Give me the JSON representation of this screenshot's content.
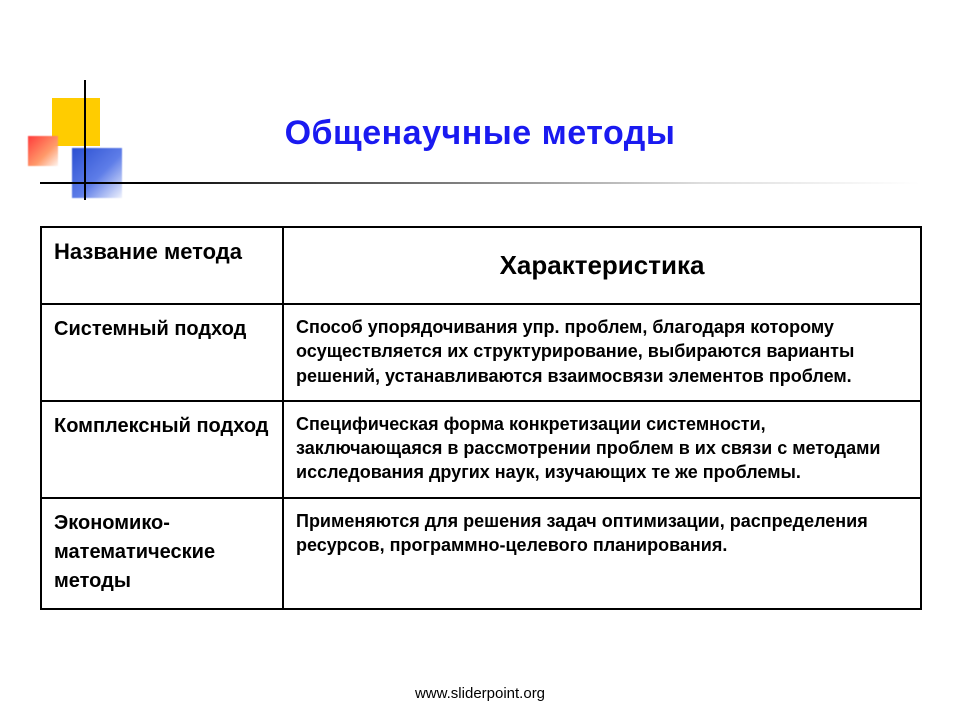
{
  "title": "Общенаучные методы",
  "table": {
    "header": {
      "col1": "Название метода",
      "col2": "Характеристика"
    },
    "rows": [
      {
        "name": "Системный подход",
        "desc": "Способ упорядочивания упр. проблем, благодаря которому осуществляется их структурирование, выбираются варианты решений, устанавливаются взаимосвязи элементов проблем."
      },
      {
        "name": "Комплексный подход",
        "desc": "Специфическая форма конкретизации системности, заключающаяся в рассмотрении проблем в их связи с методами исследования других наук, изучающих те же проблемы."
      },
      {
        "name": "Экономико-математические методы",
        "desc": "Применяются для решения задач оптимизации, распределения ресурсов, программно-целевого планирования."
      }
    ]
  },
  "footer": "www.sliderpoint.org",
  "colors": {
    "title": "#1a1af0",
    "accent_yellow": "#ffcc00",
    "accent_blue": "#2a4fd1",
    "accent_red": "#ff3b3b",
    "table_border": "#000000",
    "text": "#000000",
    "background": "#ffffff"
  },
  "typography": {
    "title_fontsize": 34,
    "header_col1_fontsize": 22,
    "header_col2_fontsize": 26,
    "cell_name_fontsize": 20,
    "cell_desc_fontsize": 18,
    "footer_fontsize": 15,
    "font_family": "Verdana"
  },
  "layout": {
    "slide_width": 960,
    "slide_height": 720,
    "table_col1_width": 242,
    "table_col2_width": 638
  }
}
